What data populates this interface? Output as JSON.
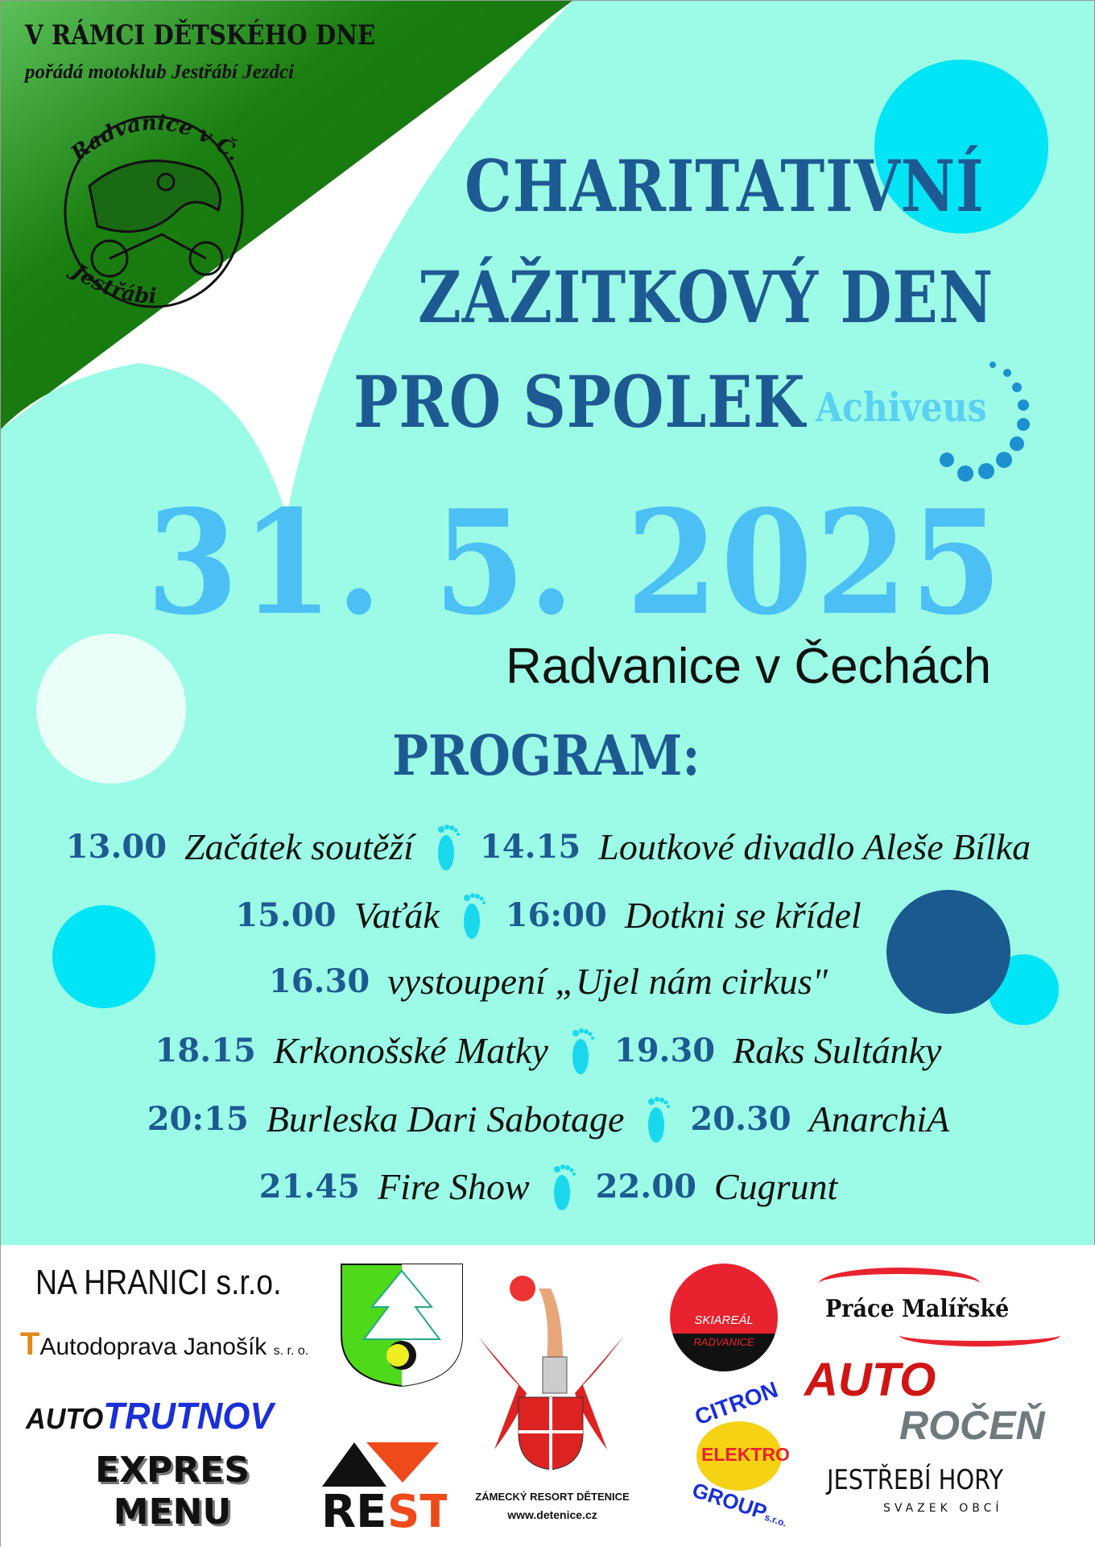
{
  "header": {
    "line1": "V RÁMCI DĚTSKÉHO DNE",
    "line2": "pořádá motoklub Jestřábí Jezdci",
    "club_logo_text": [
      "Radvanice v Č.",
      "Jestřábi"
    ]
  },
  "title": {
    "line1": "CHARITATIVNÍ",
    "line2": "ZÁŽITKOVÝ DEN",
    "line3": "PRO SPOLEK",
    "partner_logo": "Achiveus"
  },
  "date": "31. 5. 2025",
  "place": "Radvanice v Čechách",
  "program": {
    "heading": "PROGRAM:",
    "rows": [
      [
        {
          "time": "13.00",
          "event": "Začátek soutěží"
        },
        {
          "time": "14.15",
          "event": "Loutkové divadlo Aleše Bílka"
        }
      ],
      [
        {
          "time": "15.00",
          "event": "Vaťák"
        },
        {
          "time": "16:00",
          "event": "Dotkni se křídel"
        }
      ],
      [
        {
          "time": "16.30",
          "event": "vystoupení „Ujel nám cirkus\""
        }
      ],
      [
        {
          "time": "18.15",
          "event": "Krkonošské Matky"
        },
        {
          "time": "19.30",
          "event": "Raks Sultánky"
        }
      ],
      [
        {
          "time": "20:15",
          "event": "Burleska Dari Sabotage"
        },
        {
          "time": "20.30",
          "event": "AnarchiA"
        }
      ],
      [
        {
          "time": "21.45",
          "event": "Fire Show"
        },
        {
          "time": "22.00",
          "event": "Cugrunt"
        }
      ]
    ]
  },
  "sponsors": {
    "na_hranici": "NA HRANICI s.r.o.",
    "janosik": "Autodoprava Janošík",
    "janosik_suffix": "s. r. o.",
    "auto": "AUTO",
    "trutnov": "TRUTNOV",
    "expres": "EXPRES",
    "menu": "MENU",
    "rest_re": "RE",
    "rest_st": "ST",
    "zamecky": "ZÁMECKÝ RESORT DĚTENICE",
    "zamecky_url": "www.detenice.cz",
    "skiareal": "SKIAREÁL",
    "radvanice": "RADVANICE",
    "citron": "CITRON",
    "elektro": "ELEKTRO",
    "group": "GROUP",
    "group_suffix": "s.r.o.",
    "prace": "Práce Malířské",
    "auto2": "AUTO",
    "rocen": "ROČEŇ",
    "jestrebi": "JESTŘEBÍ",
    "hory": "HORY",
    "svazek": "SVAZEK OBCÍ"
  },
  "colors": {
    "background": "#9bfbe6",
    "green": "#1b7e10",
    "title_blue": "#1e5a92",
    "date_blue": "#4cc0f4",
    "cyan": "#00e5f5",
    "dark_blue": "#1a5a8f"
  }
}
